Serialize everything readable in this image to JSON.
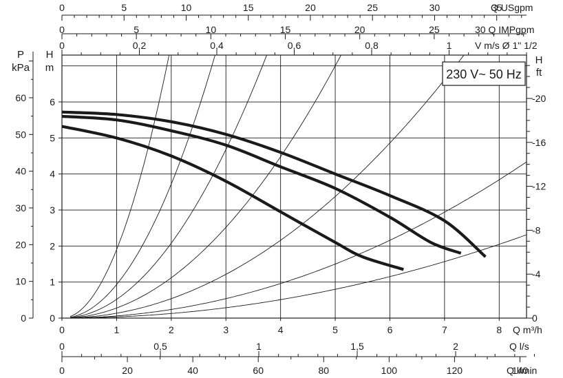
{
  "chart_data": {
    "type": "line",
    "title": "",
    "x": {
      "label": "Q m³/h",
      "range": [
        0,
        8.5
      ],
      "ticks": [
        "0",
        "1",
        "2",
        "3",
        "4",
        "5",
        "6",
        "7",
        "8"
      ]
    },
    "y": {
      "label_top": "H",
      "label_bottom": "m",
      "range": [
        0,
        7.3
      ],
      "ticks": [
        "0",
        "1",
        "2",
        "3",
        "4",
        "5",
        "6"
      ]
    },
    "secondary_axes": {
      "top": [
        {
          "label": "Q USgpm",
          "tick_values": [
            0,
            5,
            10,
            15,
            20,
            25,
            30,
            35
          ],
          "tick_labels": [
            "0",
            "5",
            "10",
            "15",
            "20",
            "25",
            "30",
            "35"
          ],
          "minor_step": 1,
          "range": [
            0,
            37.4
          ]
        },
        {
          "label": "30 Q IMPgpm",
          "tick_values": [
            0,
            5,
            10,
            15,
            20,
            25
          ],
          "tick_labels": [
            "0",
            "5",
            "10",
            "15",
            "20",
            "25"
          ],
          "minor_step": 1,
          "range": [
            0,
            31.2
          ]
        },
        {
          "label": "V m/s Ø 1\" 1/2",
          "tick_values": [
            0,
            0.2,
            0.4,
            0.6,
            0.8,
            1.0
          ],
          "tick_labels": [
            "0",
            "0,2",
            "0,4",
            "0,6",
            "0,8",
            "1"
          ],
          "minor_step": 0.05,
          "range": [
            0,
            1.2
          ]
        }
      ],
      "left": {
        "label_top": "P",
        "label_bottom": "kPa",
        "tick_values": [
          0,
          10,
          20,
          30,
          40,
          50,
          60
        ],
        "tick_labels": [
          "0",
          "10",
          "20",
          "30",
          "40",
          "50",
          "60"
        ]
      },
      "right": {
        "label_top": "H",
        "label_bottom": "ft",
        "tick_values": [
          0,
          4,
          8,
          12,
          16,
          20
        ],
        "tick_labels": [
          "0",
          "-4",
          "-8",
          "-12",
          "-16",
          "-20"
        ]
      },
      "bottom": [
        {
          "label": "Q l/s",
          "tick_values": [
            0,
            0.5,
            1,
            1.5,
            2
          ],
          "tick_labels": [
            "0",
            "0,5",
            "1",
            "1,5",
            "2"
          ],
          "minor_step": 0.1,
          "range": [
            0,
            2.36
          ]
        },
        {
          "label": "Q l/min",
          "tick_values": [
            0,
            20,
            40,
            60,
            80,
            100,
            120,
            140
          ],
          "tick_labels": [
            "0",
            "20",
            "40",
            "60",
            "80",
            "100",
            "120",
            "140"
          ],
          "minor_step": 10,
          "range": [
            0,
            142
          ]
        }
      ]
    },
    "grid": true,
    "badge": "230 V~ 50 Hz",
    "series": [
      {
        "values": [
          [
            0,
            5.72
          ],
          [
            1,
            5.65
          ],
          [
            2,
            5.45
          ],
          [
            3,
            5.1
          ],
          [
            4,
            4.6
          ],
          [
            5,
            4.0
          ],
          [
            6,
            3.4
          ],
          [
            7,
            2.7
          ],
          [
            7.75,
            1.7
          ]
        ]
      },
      {
        "values": [
          [
            0,
            5.6
          ],
          [
            1,
            5.5
          ],
          [
            2,
            5.2
          ],
          [
            3,
            4.8
          ],
          [
            4,
            4.2
          ],
          [
            5,
            3.6
          ],
          [
            6,
            2.8
          ],
          [
            6.75,
            2.1
          ],
          [
            7.3,
            1.8
          ]
        ]
      },
      {
        "values": [
          [
            0,
            5.32
          ],
          [
            1,
            5.0
          ],
          [
            2,
            4.5
          ],
          [
            3,
            3.8
          ],
          [
            4,
            2.95
          ],
          [
            5,
            2.1
          ],
          [
            5.5,
            1.7
          ],
          [
            6.25,
            1.35
          ]
        ]
      }
    ],
    "system_curves": [
      1.9,
      0.93,
      0.52,
      0.28,
      0.135,
      0.06,
      0.032
    ]
  }
}
